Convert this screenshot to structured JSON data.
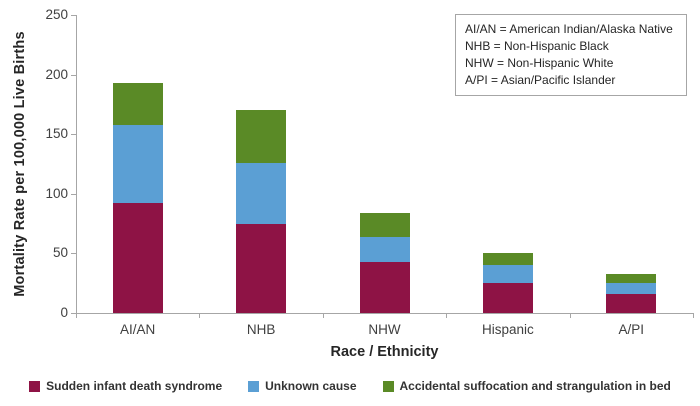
{
  "chart_data": {
    "type": "bar",
    "stacked": true,
    "title": "",
    "xlabel": "Race / Ethnicity",
    "ylabel": "Mortality Rate per 100,000 Live Births",
    "categories": [
      "AI/AN",
      "NHB",
      "NHW",
      "Hispanic",
      "A/PI"
    ],
    "series": [
      {
        "name": "Sudden infant death syndrome",
        "color": "#8E1345",
        "values": [
          92,
          75,
          43,
          25,
          16
        ]
      },
      {
        "name": "Unknown cause",
        "color": "#5B9FD4",
        "values": [
          66,
          51,
          21,
          15,
          9
        ]
      },
      {
        "name": "Accidental suffocation and strangulation in bed",
        "color": "#5A8A26",
        "values": [
          35,
          44,
          20,
          10,
          8
        ]
      }
    ],
    "totals": [
      193,
      170,
      84,
      50,
      33
    ],
    "ylim": [
      0,
      250
    ],
    "yticks": [
      0,
      50,
      100,
      150,
      200,
      250
    ],
    "grid": false,
    "legend_position": "bottom"
  },
  "annotation_box": {
    "lines": [
      "AI/AN = American Indian/Alaska Native",
      "NHB = Non-Hispanic Black",
      "NHW = Non-Hispanic White",
      "A/PI = Asian/Pacific Islander"
    ]
  },
  "colors": {
    "axis": "#A6A6A6",
    "tick_text": "#404040",
    "title_text": "#262626",
    "background": "#FFFFFF"
  }
}
